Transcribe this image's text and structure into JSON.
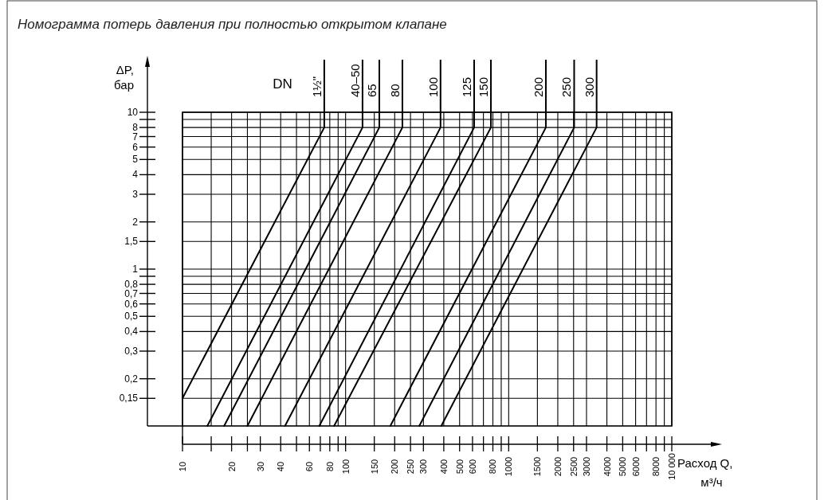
{
  "chart_data": {
    "type": "line",
    "title": "Номограмма потерь давления при полностью открытом клапане",
    "xlabel": "Расход Q, м³/ч",
    "ylabel": "ΔP, бар",
    "legend_title": "DN",
    "log": "xy",
    "grid": true,
    "line_style": "solid",
    "xlim": [
      10,
      10000
    ],
    "ylim": [
      0.1,
      10
    ],
    "xticks": [
      10,
      {
        "value": 15,
        "label": null
      },
      20,
      {
        "value": 25,
        "label": null
      },
      30,
      40,
      {
        "value": 50,
        "label": null
      },
      60,
      {
        "value": 70,
        "label": null
      },
      80,
      {
        "value": 90,
        "label": null
      },
      100,
      150,
      200,
      250,
      300,
      400,
      500,
      600,
      {
        "value": 700,
        "label": null
      },
      800,
      {
        "value": 900,
        "label": null
      },
      1000,
      1500,
      2000,
      2500,
      3000,
      4000,
      5000,
      6000,
      {
        "value": 7000,
        "label": null
      },
      8000,
      {
        "value": 9000,
        "label": null
      },
      {
        "value": 10000,
        "label": "10 000"
      }
    ],
    "yticks": [
      {
        "value": 0.15,
        "label": "0,15"
      },
      {
        "value": 0.2,
        "label": "0,2"
      },
      {
        "value": 0.3,
        "label": "0,3"
      },
      {
        "value": 0.4,
        "label": "0,4"
      },
      {
        "value": 0.5,
        "label": "0,5"
      },
      {
        "value": 0.6,
        "label": "0,6"
      },
      {
        "value": 0.7,
        "label": "0,7"
      },
      {
        "value": 0.8,
        "label": "0,8"
      },
      {
        "value": 0.9,
        "label": null
      },
      1,
      {
        "value": 1.5,
        "label": "1,5"
      },
      2,
      3,
      4,
      5,
      6,
      7,
      8,
      {
        "value": 9,
        "label": null
      },
      10
    ],
    "series": [
      {
        "name": "1½\"",
        "color": "#000000",
        "x": [
          10,
          74,
          74
        ],
        "values": [
          0.15,
          8,
          10
        ]
      },
      {
        "name": "40–50",
        "color": "#000000",
        "x": [
          14.2,
          127,
          127
        ],
        "values": [
          0.1,
          8,
          10
        ]
      },
      {
        "name": "65",
        "color": "#000000",
        "x": [
          18,
          161,
          161
        ],
        "values": [
          0.1,
          8,
          10
        ]
      },
      {
        "name": "80",
        "color": "#000000",
        "x": [
          25,
          223,
          223
        ],
        "values": [
          0.1,
          8,
          10
        ]
      },
      {
        "name": "100",
        "color": "#000000",
        "x": [
          42.5,
          382,
          382
        ],
        "values": [
          0.1,
          8,
          10
        ]
      },
      {
        "name": "125",
        "color": "#000000",
        "x": [
          69,
          614,
          614
        ],
        "values": [
          0.1,
          8,
          10
        ]
      },
      {
        "name": "150",
        "color": "#000000",
        "x": [
          85,
          778,
          778
        ],
        "values": [
          0.1,
          8,
          10
        ]
      },
      {
        "name": "200",
        "color": "#000000",
        "x": [
          188,
          1690,
          1690
        ],
        "values": [
          0.1,
          8,
          10
        ]
      },
      {
        "name": "250",
        "color": "#000000",
        "x": [
          283,
          2520,
          2520
        ],
        "values": [
          0.1,
          8,
          10
        ]
      },
      {
        "name": "300",
        "color": "#000000",
        "x": [
          386,
          3460,
          3460
        ],
        "values": [
          0.1,
          8,
          10
        ]
      }
    ]
  }
}
